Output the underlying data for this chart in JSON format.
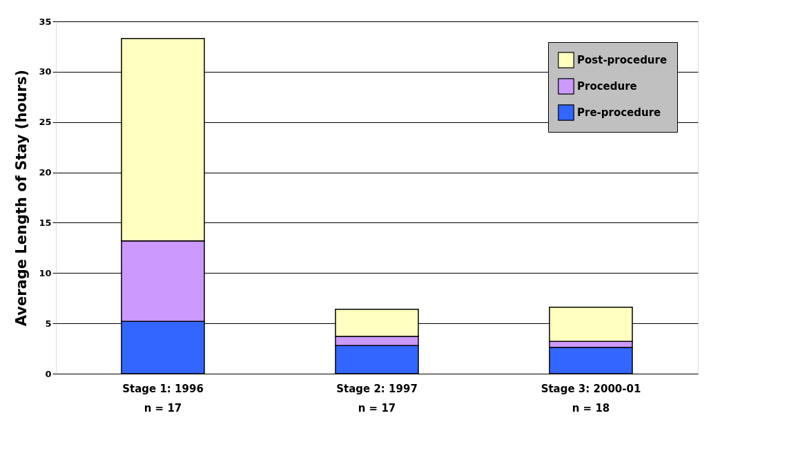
{
  "chart_data": {
    "type": "bar",
    "stacked": true,
    "ylabel": "Average Length of Stay  (hours)",
    "categories": [
      "Stage 1: 1996\nn = 17",
      "Stage 2: 1997\nn = 17",
      "Stage 3:  2000-01\nn = 18"
    ],
    "series": [
      {
        "name": "Pre-procedure",
        "color": "#3366ff",
        "values": [
          5.2,
          2.8,
          2.6
        ]
      },
      {
        "name": "Procedure",
        "color": "#cc99ff",
        "values": [
          8.0,
          0.9,
          0.6
        ]
      },
      {
        "name": "Post-procedure",
        "color": "#ffffc0",
        "values": [
          20.1,
          2.7,
          3.4
        ]
      }
    ],
    "ylim": [
      0,
      35
    ],
    "yticks": [
      0,
      5,
      10,
      15,
      20,
      25,
      30,
      35
    ],
    "grid": "y",
    "legend": "top right"
  }
}
